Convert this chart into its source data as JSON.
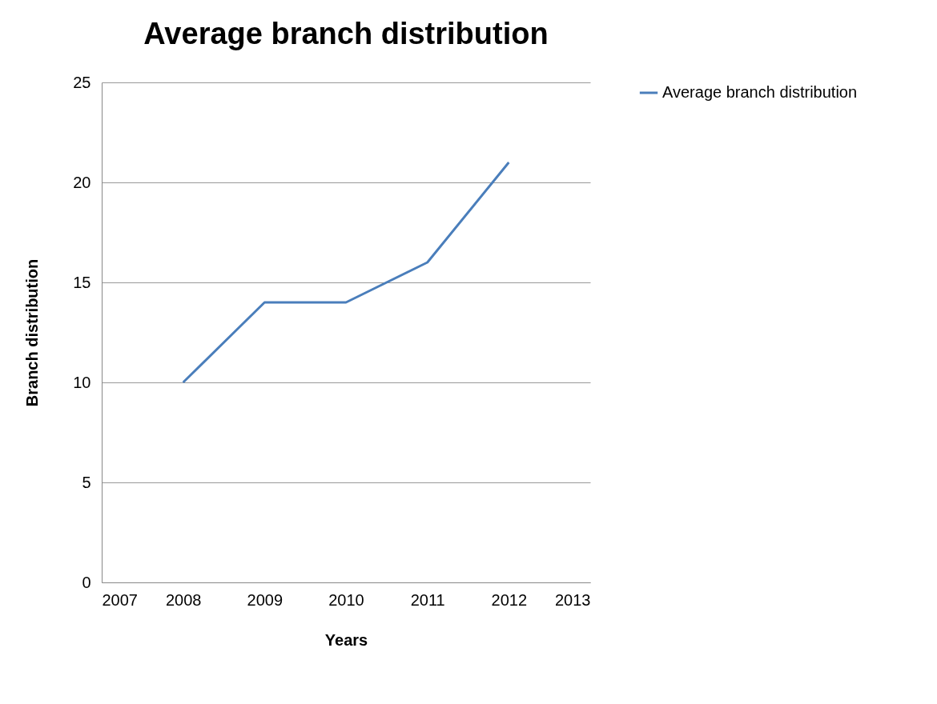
{
  "chart_data": {
    "type": "line",
    "title": "Average branch distribution",
    "xlabel": "Years",
    "ylabel": "Branch distribution",
    "x": [
      2008,
      2009,
      2010,
      2011,
      2012
    ],
    "series": [
      {
        "name": "Average branch distribution",
        "color": "#4a7ebb",
        "values": [
          10,
          14,
          14,
          16,
          21
        ]
      }
    ],
    "xlim": [
      2007,
      2013
    ],
    "xticks": [
      2007,
      2008,
      2009,
      2010,
      2011,
      2012,
      2013
    ],
    "ylim": [
      0,
      25
    ],
    "yticks": [
      0,
      5,
      10,
      15,
      20,
      25
    ],
    "grid": "y",
    "legend": "right",
    "marker": "none",
    "line_style": "solid"
  }
}
